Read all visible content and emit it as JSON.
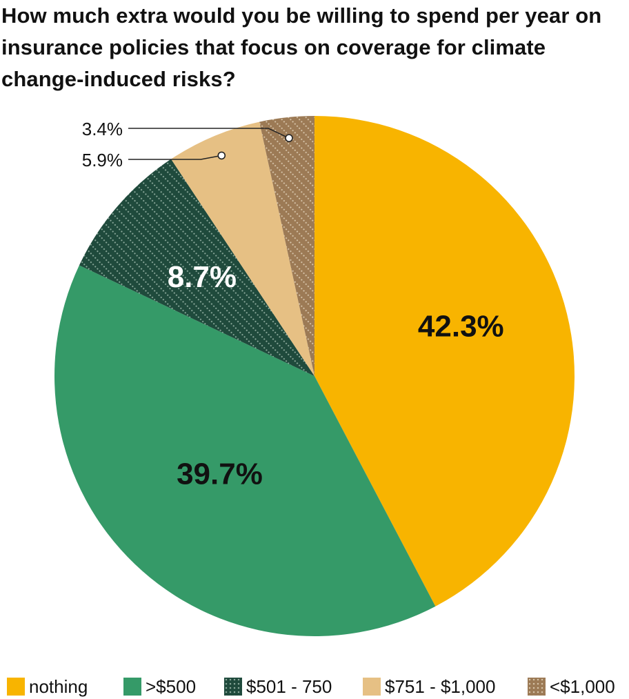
{
  "chart_data": {
    "type": "pie",
    "title": "How much extra would you be willing to spend per year on insurance policies that focus on coverage for climate change-induced risks?",
    "legend_position": "bottom",
    "slices": [
      {
        "name": "nothing",
        "value": 42.3,
        "label": "42.3%",
        "color": "#f8b400",
        "pattern": "none",
        "label_style": "inside-dark"
      },
      {
        "name": ">$500",
        "value": 39.7,
        "label": "39.7%",
        "color": "#359a68",
        "pattern": "none",
        "label_style": "inside-dark"
      },
      {
        "name": "$501 - 750",
        "value": 8.7,
        "label": "8.7%",
        "color": "#1f4a3c",
        "pattern": "dots",
        "label_style": "inside-light"
      },
      {
        "name": "$751 - $1,000",
        "value": 5.9,
        "label": "5.9%",
        "color": "#e6c084",
        "pattern": "none",
        "label_style": "callout"
      },
      {
        "name": "<$1,000",
        "value": 3.4,
        "label": "3.4%",
        "color": "#9c7a55",
        "pattern": "dots",
        "label_style": "callout"
      }
    ]
  }
}
